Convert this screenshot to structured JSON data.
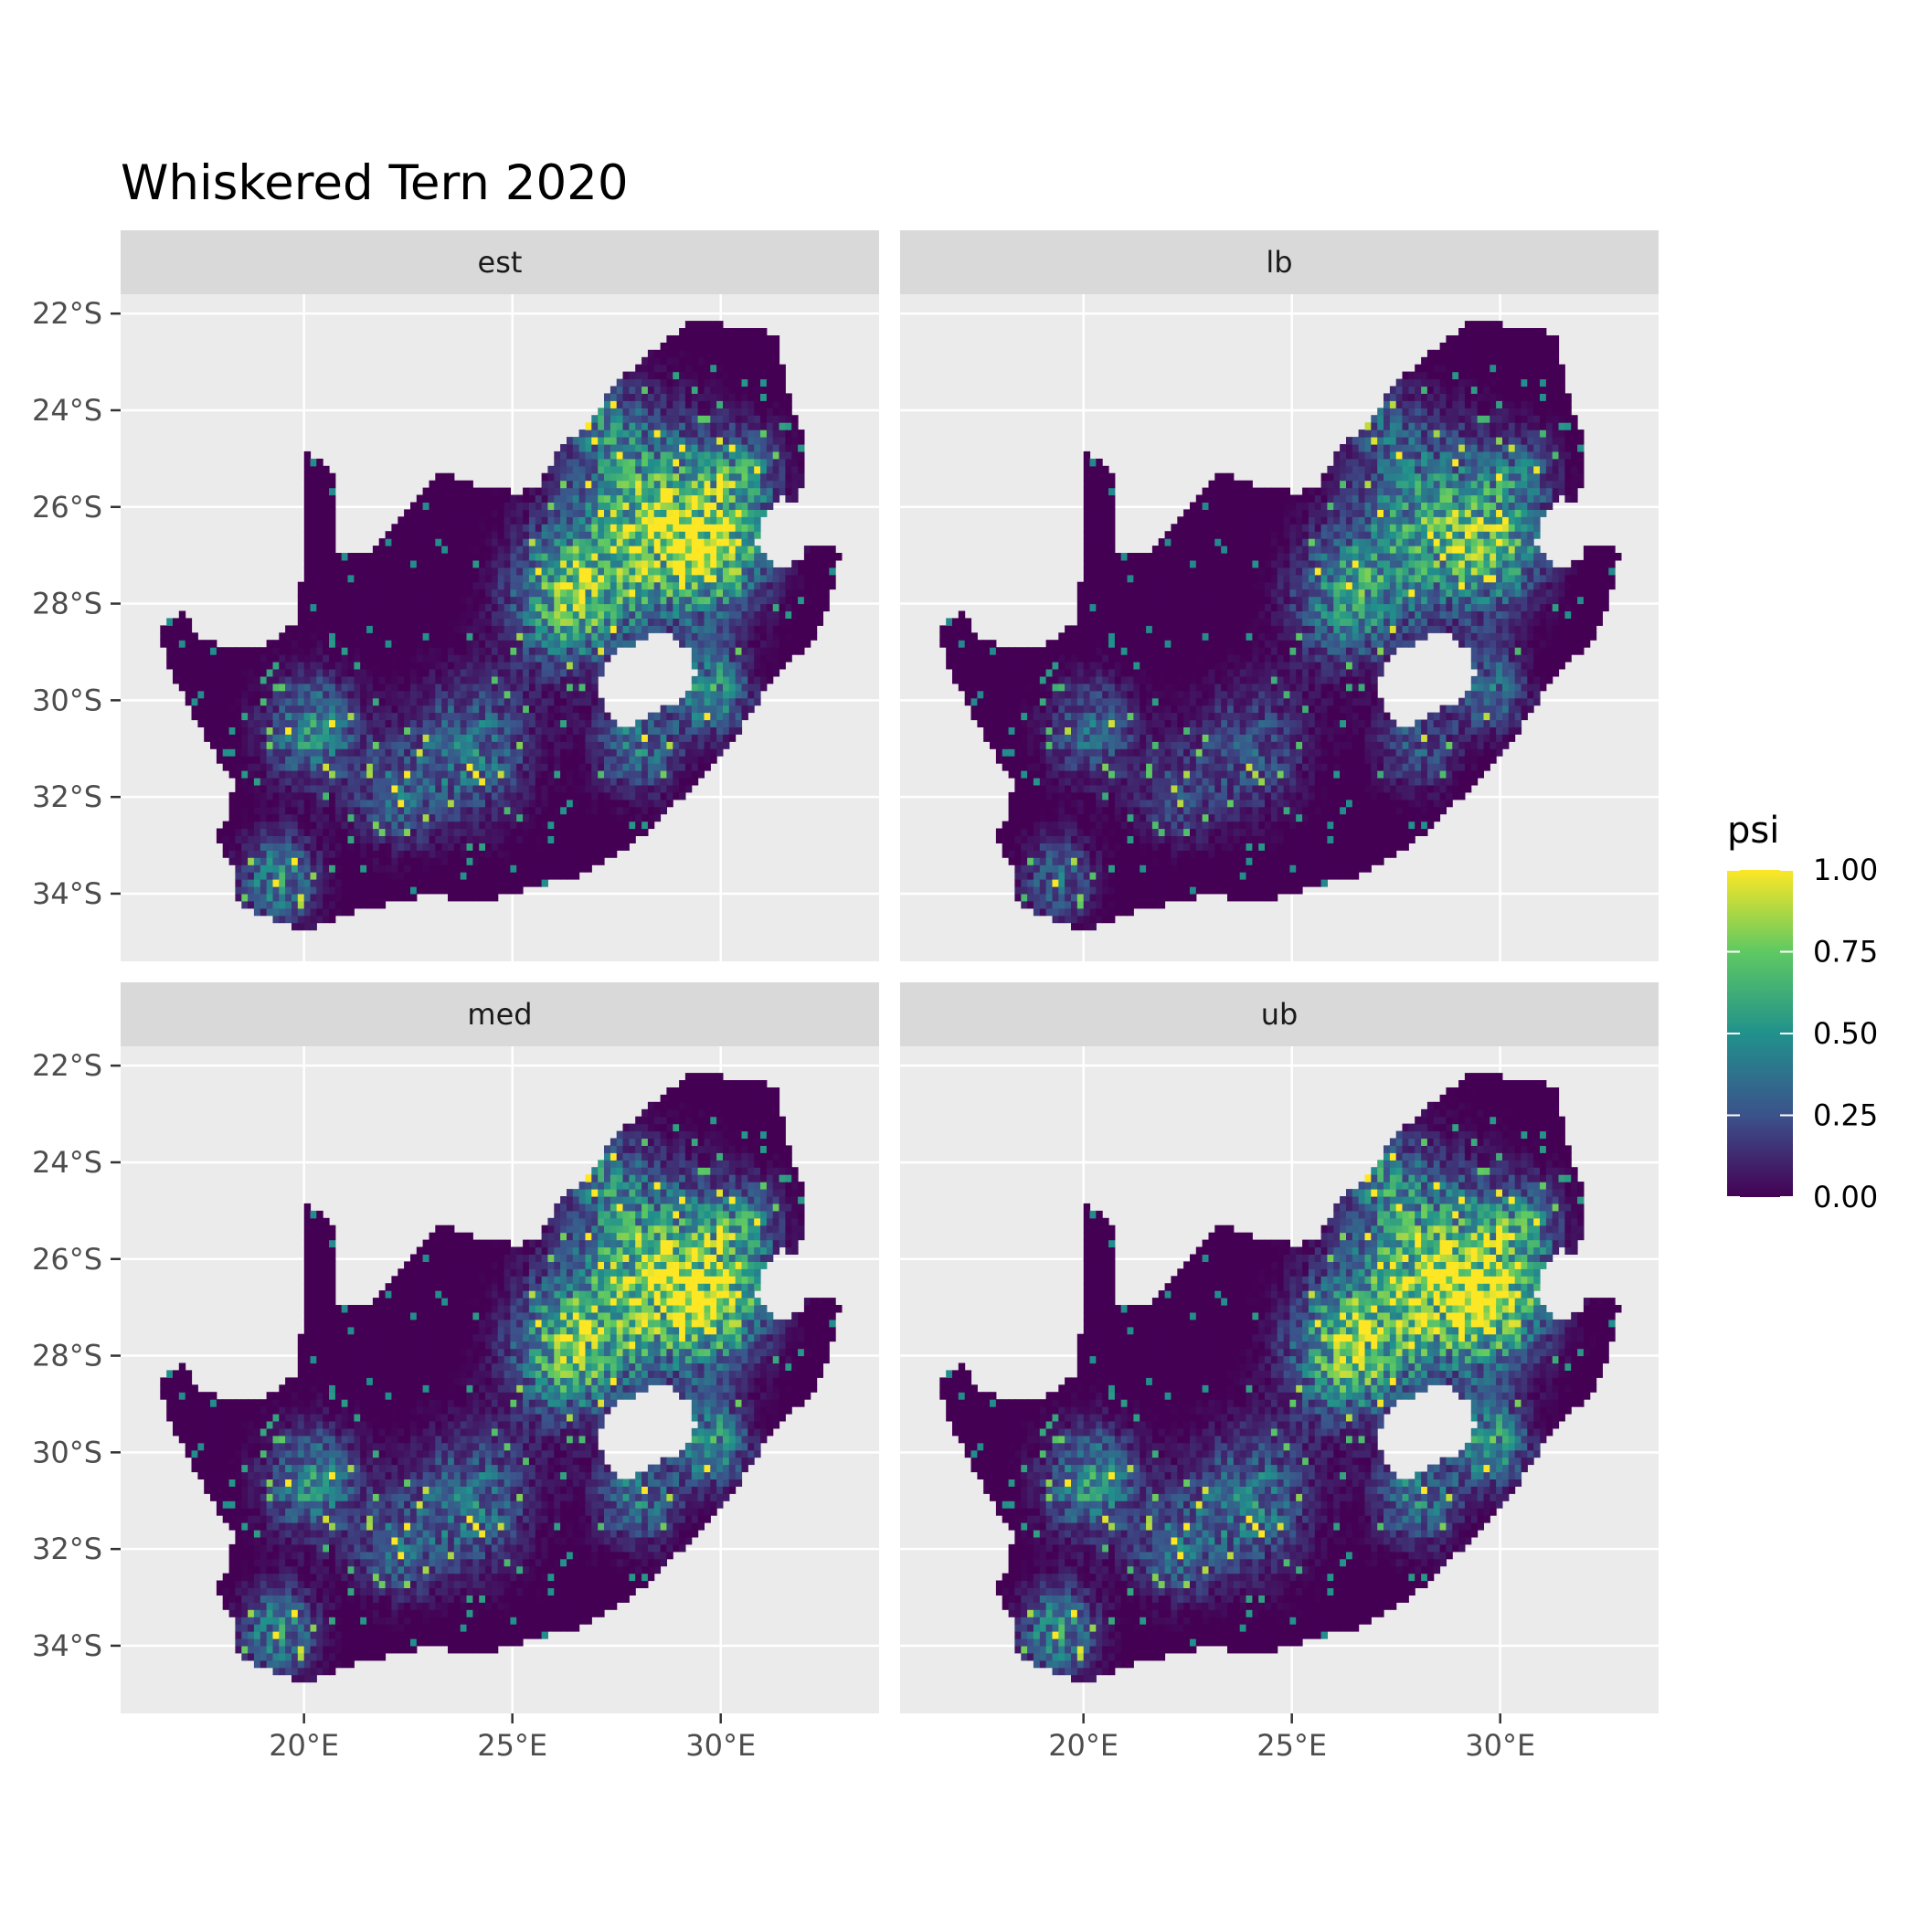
{
  "title": "Whiskered Tern 2020",
  "chart_data": {
    "type": "heatmap",
    "title": "Whiskered Tern 2020",
    "facets": [
      {
        "label": "est",
        "hotspot_intensity": 0.95
      },
      {
        "label": "lb",
        "hotspot_intensity": 0.7
      },
      {
        "label": "med",
        "hotspot_intensity": 0.95
      },
      {
        "label": "ub",
        "hotspot_intensity": 1.0
      }
    ],
    "x_axis": {
      "ticks": [
        {
          "value": 20,
          "label": "20°E"
        },
        {
          "value": 25,
          "label": "25°E"
        },
        {
          "value": 30,
          "label": "30°E"
        }
      ],
      "range": [
        15.6,
        33.8
      ]
    },
    "y_axis": {
      "ticks": [
        {
          "value": -22,
          "label": "22°S"
        },
        {
          "value": -24,
          "label": "24°S"
        },
        {
          "value": -26,
          "label": "26°S"
        },
        {
          "value": -28,
          "label": "28°S"
        },
        {
          "value": -30,
          "label": "30°S"
        },
        {
          "value": -32,
          "label": "32°S"
        },
        {
          "value": -34,
          "label": "34°S"
        }
      ],
      "range": [
        -35.4,
        -21.6
      ]
    },
    "legend": {
      "title": "psi",
      "placement": "right",
      "min": 0,
      "max": 1,
      "ticks": [
        {
          "value": 1.0,
          "label": "1.00"
        },
        {
          "value": 0.75,
          "label": "0.75"
        },
        {
          "value": 0.5,
          "label": "0.50"
        },
        {
          "value": 0.25,
          "label": "0.25"
        },
        {
          "value": 0.0,
          "label": "0.00"
        }
      ],
      "palette": [
        "#440154",
        "#3b528b",
        "#21918c",
        "#5ec962",
        "#fde725"
      ]
    },
    "grid": true
  },
  "colors": {
    "panel_background": "#ebebeb",
    "strip_background": "#d9d9d9",
    "grid": "#ffffff"
  }
}
